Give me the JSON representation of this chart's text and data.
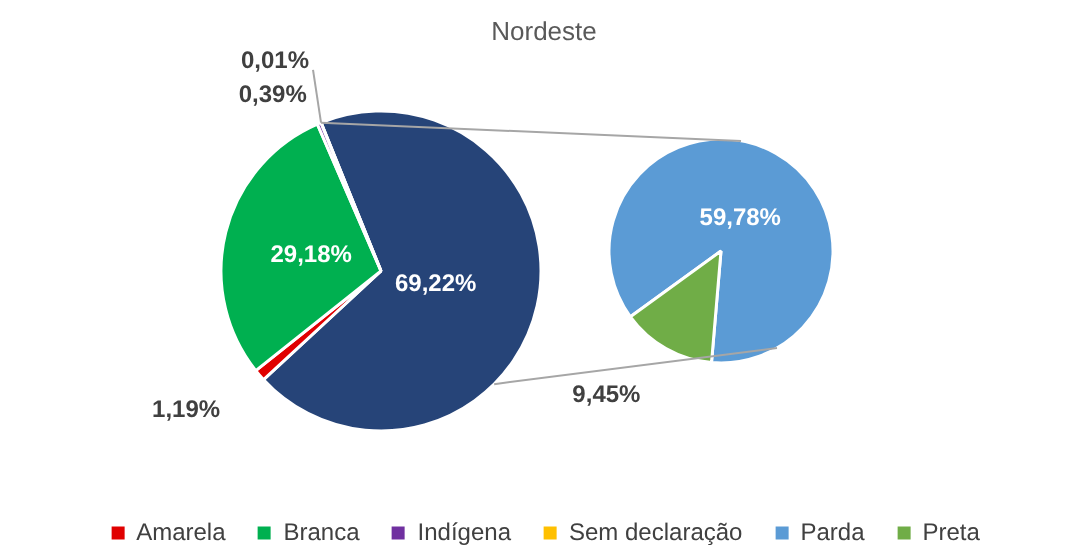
{
  "chart_data": [
    {
      "type": "pie",
      "title": "Nordeste",
      "categories": [
        null,
        "Amarela",
        "Branca",
        "Indígena",
        "Sem declaração"
      ],
      "values": [
        69.22,
        1.19,
        29.18,
        0.39,
        0.01
      ],
      "colors": [
        "#264478",
        "#e00000",
        "#00b050",
        "#7030a0",
        "#ffc000"
      ],
      "value_labels": [
        "69,22%",
        "1,19%",
        "29,18%",
        "0,39%",
        "0,01%"
      ],
      "legend": "bottom"
    },
    {
      "type": "pie",
      "categories": [
        "Parda",
        "Preta"
      ],
      "values": [
        59.78,
        9.45
      ],
      "colors": [
        "#5b9bd5",
        "#70ad47"
      ],
      "value_labels": [
        "59,78%",
        "9,45%"
      ],
      "legend": "bottom"
    }
  ]
}
